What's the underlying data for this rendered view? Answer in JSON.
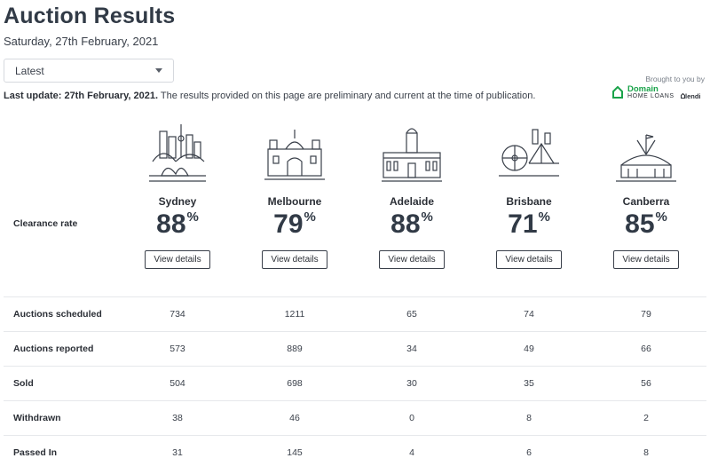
{
  "header": {
    "title": "Auction Results",
    "date": "Saturday, 27th February, 2021"
  },
  "filter": {
    "selected": "Latest"
  },
  "update": {
    "bold": "Last update: 27th February, 2021.",
    "text": " The results provided on this page are preliminary and current at the time of publication."
  },
  "sponsor": {
    "brought": "Brought to you by",
    "domain": "Domain",
    "home_loans": "HOME LOANS",
    "lendi": "lendi"
  },
  "clearance_label": "Clearance rate",
  "button_label": "View details",
  "cities": [
    {
      "name": "Sydney",
      "rate": "88",
      "icon": "sydney-skyline-icon"
    },
    {
      "name": "Melbourne",
      "rate": "79",
      "icon": "melbourne-skyline-icon"
    },
    {
      "name": "Adelaide",
      "rate": "88",
      "icon": "adelaide-skyline-icon"
    },
    {
      "name": "Brisbane",
      "rate": "71",
      "icon": "brisbane-skyline-icon"
    },
    {
      "name": "Canberra",
      "rate": "85",
      "icon": "canberra-skyline-icon"
    }
  ],
  "percent": "%",
  "rows": [
    {
      "label": "Auctions scheduled",
      "values": [
        "734",
        "1211",
        "65",
        "74",
        "79"
      ]
    },
    {
      "label": "Auctions reported",
      "values": [
        "573",
        "889",
        "34",
        "49",
        "66"
      ]
    },
    {
      "label": "Sold",
      "values": [
        "504",
        "698",
        "30",
        "35",
        "56"
      ]
    },
    {
      "label": "Withdrawn",
      "values": [
        "38",
        "46",
        "0",
        "8",
        "2"
      ]
    },
    {
      "label": "Passed In",
      "values": [
        "31",
        "145",
        "4",
        "6",
        "8"
      ]
    }
  ],
  "colors": {
    "brand_green": "#1aa34a",
    "text": "#2b2f36"
  }
}
